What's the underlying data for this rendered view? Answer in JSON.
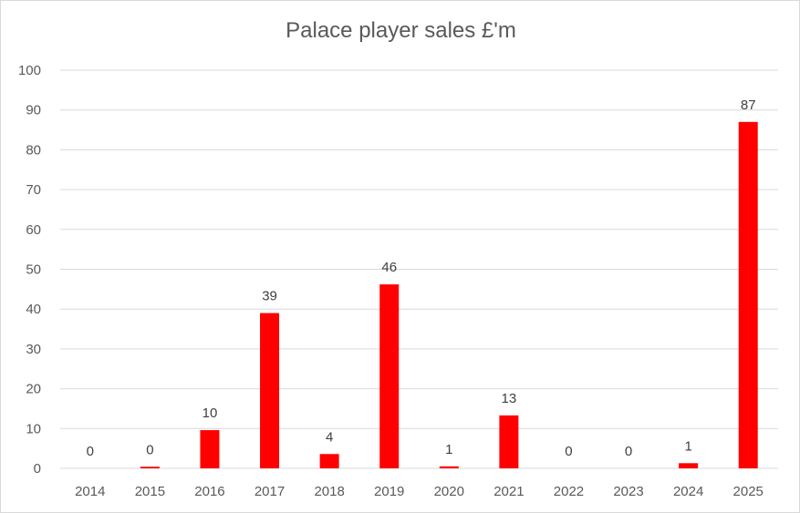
{
  "chart_data": {
    "type": "bar",
    "title": "Palace player sales £'m",
    "xlabel": "",
    "ylabel": "",
    "categories": [
      "2014",
      "2015",
      "2016",
      "2017",
      "2018",
      "2019",
      "2020",
      "2021",
      "2022",
      "2023",
      "2024",
      "2025"
    ],
    "values": [
      0,
      0.4,
      9.6,
      39,
      3.6,
      46.2,
      0.5,
      13.3,
      0,
      0,
      1.3,
      87
    ],
    "data_labels": [
      "0",
      "0",
      "10",
      "39",
      "4",
      "46",
      "1",
      "13",
      "0",
      "0",
      "1",
      "87"
    ],
    "ylim": [
      0,
      100
    ],
    "yticks": [
      0,
      10,
      20,
      30,
      40,
      50,
      60,
      70,
      80,
      90,
      100
    ],
    "grid": true,
    "bar_color": "#ff0000",
    "legend": "none"
  }
}
